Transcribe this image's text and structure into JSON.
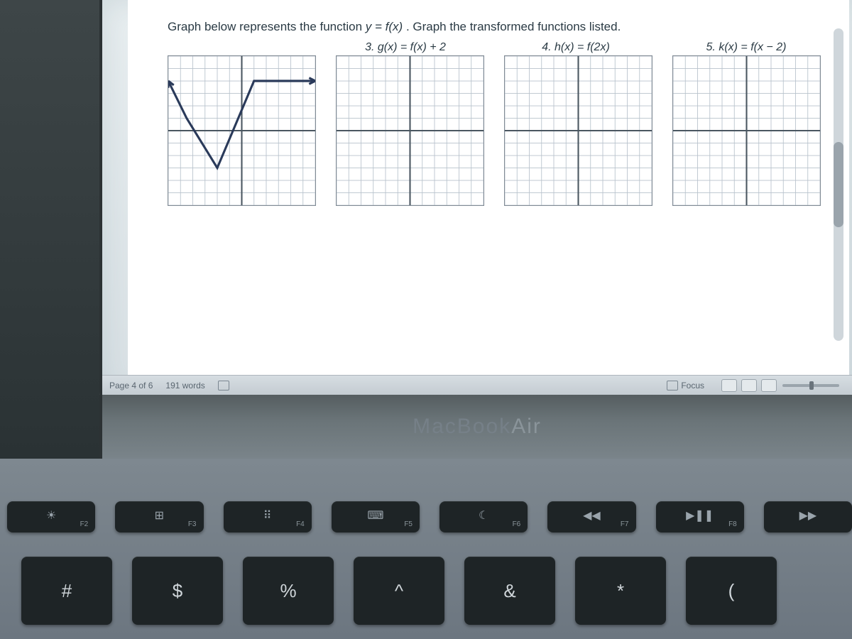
{
  "doc": {
    "prompt_pre": "Graph below represents the function ",
    "prompt_eq": "y = f(x)",
    "prompt_post": ". Graph the transformed functions listed.",
    "eq3": "3. g(x) = f(x) + 2",
    "eq4": "4. h(x) = f(2x)",
    "eq5": "5. k(x) = f(x − 2)",
    "grid": {
      "cells": 12,
      "minor_color": "#b8c2cc",
      "axis_color": "#4a5660",
      "arrow_color": "#2a3a5a",
      "curve_color": "#2a3a5a"
    },
    "original_curve": {
      "points": [
        [
          -6,
          4
        ],
        [
          -4.5,
          1
        ],
        [
          -2,
          -3
        ],
        [
          1,
          4
        ],
        [
          6,
          4
        ]
      ],
      "arrows_at": [
        0,
        4
      ]
    }
  },
  "statusbar": {
    "page": "Page 4 of 6",
    "words": "191 words",
    "focus": "Focus"
  },
  "laptop": {
    "brand": "MacBook",
    "brand2": " Air"
  },
  "fn_keys": [
    {
      "icon": "☀",
      "label": "F2"
    },
    {
      "icon": "⊞",
      "label": "F3"
    },
    {
      "icon": "⠿",
      "label": "F4"
    },
    {
      "icon": "⌨",
      "label": "F5"
    },
    {
      "icon": "☾",
      "label": "F6"
    },
    {
      "icon": "◀◀",
      "label": "F7"
    },
    {
      "icon": "▶❚❚",
      "label": "F8"
    },
    {
      "icon": "▶▶",
      "label": ""
    }
  ],
  "num_keys": [
    "#",
    "$",
    "%",
    "^",
    "&",
    "*",
    "("
  ]
}
